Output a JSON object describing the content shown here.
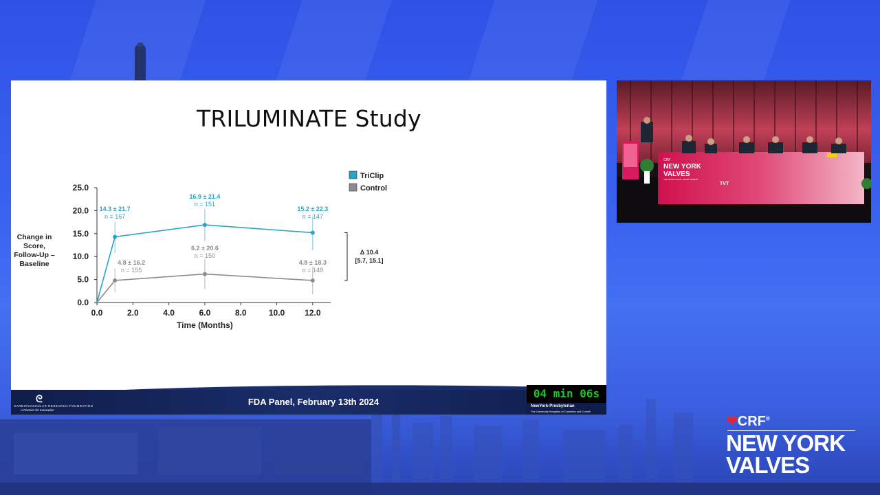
{
  "slide": {
    "title": "TRILUMINATE Study",
    "footer_text": "FDA Panel, February 13th 2024",
    "org_line1": "CARDIOVASCULAR RESEARCH FOUNDATION",
    "org_line2": "A Passion for Innovation"
  },
  "timer": {
    "text": "04 min 06s"
  },
  "hospital": {
    "name": "NewYork-Presbyterian",
    "subtitle": "The University Hospitals of Columbia and Cornell"
  },
  "branding": {
    "crf": "CRF",
    "event_line1": "NEW YORK",
    "event_line2": "VALVES"
  },
  "video": {
    "screen_line1": "NEW YORK",
    "screen_line2": "VALVES",
    "screen_tagline": "THE STRUCTURAL HEART SUMMIT",
    "screen_crf": "CRF",
    "screen_tvt": "TVT"
  },
  "chart_data": {
    "type": "line",
    "title": "TRILUMINATE Study",
    "xlabel": "Time (Months)",
    "ylabel": "Change in Score, Follow-Up – Baseline",
    "ylabel_lines": [
      "Change in",
      "Score,",
      "Follow-Up –",
      "Baseline"
    ],
    "xlim": [
      0,
      13
    ],
    "ylim": [
      0,
      25
    ],
    "xticks": [
      "0.0",
      "2.0",
      "4.0",
      "6.0",
      "8.0",
      "10.0",
      "12.0"
    ],
    "yticks": [
      "0.0",
      "5.0",
      "10.0",
      "15.0",
      "20.0",
      "25.0"
    ],
    "legend_position": "top-right",
    "series": [
      {
        "name": "TriClip",
        "color": "#27a3cc",
        "x": [
          0,
          1,
          6,
          12
        ],
        "y": [
          0,
          14.3,
          16.9,
          15.2
        ],
        "err_low": [
          null,
          10.8,
          13.4,
          11.5
        ],
        "err_high": [
          null,
          17.6,
          20.4,
          18.8
        ],
        "annotations": [
          {
            "x": 1,
            "value": "14.3 ± 21.7",
            "n": "n = 167"
          },
          {
            "x": 6,
            "value": "16.9 ± 21.4",
            "n": "n = 151"
          },
          {
            "x": 12,
            "value": "15.2 ± 22.3",
            "n": "n = 147"
          }
        ]
      },
      {
        "name": "Control",
        "color": "#8c8c8c",
        "x": [
          0,
          1,
          6,
          12
        ],
        "y": [
          0,
          4.8,
          6.2,
          4.8
        ],
        "err_low": [
          null,
          2.2,
          2.9,
          1.8
        ],
        "err_high": [
          null,
          7.4,
          9.5,
          7.8
        ],
        "annotations": [
          {
            "x": 1,
            "value": "4.8 ± 16.2",
            "n": "n = 155"
          },
          {
            "x": 6,
            "value": "6.2 ± 20.6",
            "n": "n = 150"
          },
          {
            "x": 12,
            "value": "4.8 ± 18.3",
            "n": "n = 148"
          }
        ]
      }
    ],
    "delta_label": "Δ 10.4",
    "delta_ci": "[5.7, 15.1]",
    "delta_range": [
      4.8,
      15.2
    ]
  },
  "colors": {
    "background": "#3a63f0",
    "triclip": "#27a3cc",
    "control": "#8c8c8c",
    "timer": "#22c22a",
    "footer": "#0f1d4a"
  }
}
